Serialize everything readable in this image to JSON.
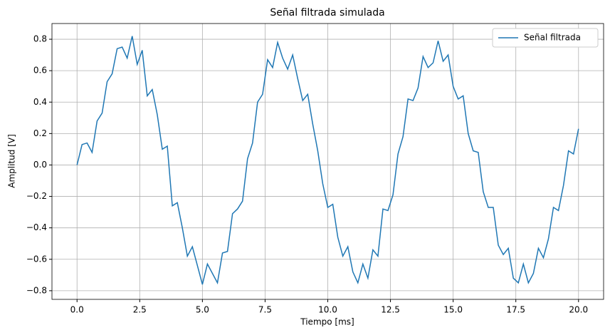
{
  "chart_data": {
    "type": "line",
    "title": "Señal filtrada simulada",
    "xlabel": "Tiempo [ms]",
    "ylabel": "Amplitud [V]",
    "x": [
      0,
      0.2,
      0.4,
      0.6,
      0.8,
      1.0,
      1.2,
      1.4,
      1.6,
      1.8,
      2.0,
      2.2,
      2.4,
      2.6,
      2.8,
      3.0,
      3.2,
      3.4,
      3.6,
      3.8,
      4.0,
      4.2,
      4.4,
      4.6,
      4.8,
      5.0,
      5.2,
      5.4,
      5.6,
      5.8,
      6.0,
      6.2,
      6.4,
      6.6,
      6.8,
      7.0,
      7.2,
      7.4,
      7.6,
      7.8,
      8.0,
      8.2,
      8.4,
      8.6,
      8.8,
      9.0,
      9.2,
      9.4,
      9.6,
      9.8,
      10.0,
      10.2,
      10.4,
      10.6,
      10.8,
      11.0,
      11.2,
      11.4,
      11.6,
      11.8,
      12.0,
      12.2,
      12.4,
      12.6,
      12.8,
      13.0,
      13.2,
      13.4,
      13.6,
      13.8,
      14.0,
      14.2,
      14.4,
      14.6,
      14.8,
      15.0,
      15.2,
      15.4,
      15.6,
      15.8,
      16.0,
      16.2,
      16.4,
      16.6,
      16.8,
      17.0,
      17.2,
      17.4,
      17.6,
      17.8,
      18.0,
      18.2,
      18.4,
      18.6,
      18.8,
      19.0,
      19.2,
      19.4,
      19.6,
      19.8,
      20.0
    ],
    "series": [
      {
        "name": "Señal filtrada",
        "color": "#1f77b4",
        "values": [
          0,
          0.13,
          0.14,
          0.08,
          0.28,
          0.33,
          0.53,
          0.58,
          0.74,
          0.75,
          0.68,
          0.82,
          0.64,
          0.73,
          0.44,
          0.48,
          0.32,
          0.1,
          0.12,
          -0.26,
          -0.24,
          -0.4,
          -0.58,
          -0.52,
          -0.64,
          -0.76,
          -0.63,
          -0.69,
          -0.75,
          -0.56,
          -0.55,
          -0.31,
          -0.28,
          -0.23,
          0.04,
          0.14,
          0.4,
          0.45,
          0.67,
          0.62,
          0.78,
          0.68,
          0.61,
          0.7,
          0.55,
          0.41,
          0.45,
          0.26,
          0.09,
          -0.12,
          -0.27,
          -0.25,
          -0.46,
          -0.58,
          -0.52,
          -0.68,
          -0.75,
          -0.63,
          -0.72,
          -0.54,
          -0.58,
          -0.28,
          -0.29,
          -0.19,
          0.07,
          0.18,
          0.42,
          0.41,
          0.49,
          0.69,
          0.62,
          0.65,
          0.79,
          0.66,
          0.7,
          0.5,
          0.42,
          0.44,
          0.2,
          0.09,
          0.08,
          -0.17,
          -0.27,
          -0.27,
          -0.51,
          -0.57,
          -0.53,
          -0.72,
          -0.75,
          -0.63,
          -0.75,
          -0.69,
          -0.53,
          -0.59,
          -0.47,
          -0.27,
          -0.29,
          -0.13,
          0.09,
          0.07,
          0.23
        ]
      }
    ],
    "xlim": [
      -1,
      21
    ],
    "ylim": [
      -0.855,
      0.9
    ],
    "xticks": [
      {
        "value": 0,
        "label": "0.0"
      },
      {
        "value": 2.5,
        "label": "2.5"
      },
      {
        "value": 5,
        "label": "5.0"
      },
      {
        "value": 7.5,
        "label": "7.5"
      },
      {
        "value": 10,
        "label": "10.0"
      },
      {
        "value": 12.5,
        "label": "12.5"
      },
      {
        "value": 15,
        "label": "15.0"
      },
      {
        "value": 17.5,
        "label": "17.5"
      },
      {
        "value": 20,
        "label": "20.0"
      }
    ],
    "yticks": [
      {
        "value": -0.8,
        "label": "−0.8"
      },
      {
        "value": -0.6,
        "label": "−0.6"
      },
      {
        "value": -0.4,
        "label": "−0.4"
      },
      {
        "value": -0.2,
        "label": "−0.2"
      },
      {
        "value": 0,
        "label": "0.0"
      },
      0.2,
      0.4,
      0.6,
      0.8
    ],
    "grid": true,
    "legend": "upper-right"
  }
}
